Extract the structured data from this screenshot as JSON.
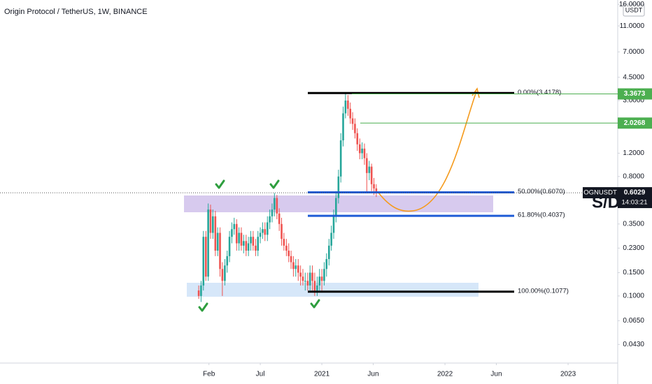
{
  "chart_data": {
    "type": "candlestick",
    "title": "Origin Protocol / TetherUS, 1W, BINANCE",
    "scale": "log",
    "currency": "USDT",
    "annotation": "S/D",
    "countdown": "14:03:21",
    "series": [
      {
        "name": "OGNUSDT",
        "up_color": "#26a69a",
        "down_color": "#ef5350",
        "x": [
          2020.0,
          2020.019,
          2020.038,
          2020.058,
          2020.077,
          2020.096,
          2020.115,
          2020.135,
          2020.154,
          2020.173,
          2020.192,
          2020.212,
          2020.231,
          2020.25,
          2020.269,
          2020.288,
          2020.308,
          2020.327,
          2020.346,
          2020.365,
          2020.385,
          2020.404,
          2020.423,
          2020.442,
          2020.462,
          2020.481,
          2020.5,
          2020.519,
          2020.538,
          2020.558,
          2020.577,
          2020.596,
          2020.615,
          2020.635,
          2020.654,
          2020.673,
          2020.692,
          2020.712,
          2020.731,
          2020.75,
          2020.769,
          2020.788,
          2020.808,
          2020.827,
          2020.846,
          2020.865,
          2020.885,
          2020.904,
          2020.923,
          2020.942,
          2020.962,
          2020.981,
          2021.0,
          2021.019,
          2021.038,
          2021.058,
          2021.077,
          2021.096,
          2021.115,
          2021.135,
          2021.154,
          2021.173,
          2021.192,
          2021.212,
          2021.231,
          2021.25,
          2021.269,
          2021.288,
          2021.308,
          2021.327,
          2021.346,
          2021.365,
          2021.385,
          2021.404,
          2021.423,
          2021.442
        ],
        "open": [
          0.11,
          0.1,
          0.12,
          0.28,
          0.14,
          0.45,
          0.3,
          0.4,
          0.22,
          0.3,
          0.16,
          0.13,
          0.17,
          0.2,
          0.28,
          0.32,
          0.35,
          0.25,
          0.3,
          0.24,
          0.26,
          0.22,
          0.25,
          0.28,
          0.24,
          0.22,
          0.28,
          0.3,
          0.32,
          0.29,
          0.36,
          0.4,
          0.45,
          0.55,
          0.42,
          0.35,
          0.27,
          0.24,
          0.22,
          0.2,
          0.18,
          0.16,
          0.17,
          0.15,
          0.14,
          0.13,
          0.13,
          0.12,
          0.15,
          0.13,
          0.11,
          0.12,
          0.14,
          0.13,
          0.16,
          0.19,
          0.24,
          0.3,
          0.4,
          0.55,
          0.8,
          1.5,
          2.4,
          3.0,
          2.6,
          2.2,
          2.0,
          1.7,
          1.4,
          1.2,
          1.3,
          1.1,
          0.85,
          0.95,
          0.7,
          0.65
        ],
        "high": [
          0.12,
          0.13,
          0.31,
          0.31,
          0.5,
          0.49,
          0.45,
          0.44,
          0.33,
          0.33,
          0.18,
          0.19,
          0.22,
          0.31,
          0.36,
          0.39,
          0.38,
          0.33,
          0.33,
          0.29,
          0.29,
          0.28,
          0.31,
          0.31,
          0.27,
          0.31,
          0.33,
          0.36,
          0.36,
          0.4,
          0.45,
          0.5,
          0.6,
          0.58,
          0.46,
          0.39,
          0.3,
          0.27,
          0.25,
          0.22,
          0.2,
          0.19,
          0.19,
          0.17,
          0.16,
          0.15,
          0.15,
          0.17,
          0.17,
          0.15,
          0.14,
          0.16,
          0.16,
          0.18,
          0.21,
          0.27,
          0.34,
          0.45,
          0.62,
          0.9,
          1.7,
          2.7,
          3.4178,
          3.3,
          2.9,
          2.45,
          2.2,
          1.85,
          1.55,
          1.45,
          1.42,
          1.2,
          1.05,
          1.0,
          0.78,
          0.7
        ],
        "low": [
          0.095,
          0.09,
          0.11,
          0.13,
          0.13,
          0.27,
          0.27,
          0.2,
          0.2,
          0.14,
          0.1,
          0.12,
          0.15,
          0.18,
          0.25,
          0.29,
          0.22,
          0.22,
          0.22,
          0.21,
          0.2,
          0.2,
          0.22,
          0.22,
          0.2,
          0.2,
          0.25,
          0.27,
          0.26,
          0.26,
          0.32,
          0.36,
          0.4,
          0.38,
          0.31,
          0.24,
          0.22,
          0.2,
          0.18,
          0.16,
          0.14,
          0.14,
          0.13,
          0.12,
          0.12,
          0.11,
          0.11,
          0.11,
          0.11,
          0.1,
          0.1,
          0.11,
          0.11,
          0.12,
          0.14,
          0.17,
          0.22,
          0.27,
          0.36,
          0.5,
          0.72,
          1.35,
          2.2,
          2.3,
          2.0,
          1.8,
          1.55,
          1.25,
          1.08,
          1.08,
          0.98,
          0.6,
          0.75,
          0.62,
          0.58,
          0.56
        ],
        "close": [
          0.1,
          0.12,
          0.28,
          0.14,
          0.45,
          0.3,
          0.4,
          0.22,
          0.3,
          0.16,
          0.13,
          0.17,
          0.2,
          0.28,
          0.32,
          0.35,
          0.25,
          0.3,
          0.24,
          0.26,
          0.22,
          0.25,
          0.28,
          0.24,
          0.22,
          0.28,
          0.3,
          0.32,
          0.29,
          0.36,
          0.4,
          0.45,
          0.55,
          0.42,
          0.35,
          0.27,
          0.24,
          0.22,
          0.2,
          0.18,
          0.16,
          0.17,
          0.15,
          0.14,
          0.13,
          0.13,
          0.12,
          0.15,
          0.13,
          0.11,
          0.12,
          0.14,
          0.13,
          0.16,
          0.19,
          0.24,
          0.3,
          0.4,
          0.55,
          0.8,
          1.5,
          2.4,
          3.0,
          2.6,
          2.2,
          2.0,
          1.7,
          1.4,
          1.2,
          1.3,
          1.1,
          0.85,
          0.95,
          0.7,
          0.65,
          0.6029
        ]
      }
    ],
    "ylim": [
      0.0311,
      17.27
    ],
    "yticks": [
      {
        "value": 16,
        "label": "16.0000"
      },
      {
        "value": 11,
        "label": "11.0000"
      },
      {
        "value": 7,
        "label": "7.0000"
      },
      {
        "value": 4.5,
        "label": "4.5000"
      },
      {
        "value": 3,
        "label": "3.0000"
      },
      {
        "value": 1.2,
        "label": "1.2000"
      },
      {
        "value": 0.8,
        "label": "0.8000"
      },
      {
        "value": 0.35,
        "label": "0.3500"
      },
      {
        "value": 0.23,
        "label": "0.2300"
      },
      {
        "value": 0.15,
        "label": "0.1500"
      },
      {
        "value": 0.1,
        "label": "0.1000"
      },
      {
        "value": 0.065,
        "label": "0.0650"
      },
      {
        "value": 0.043,
        "label": "0.0430"
      }
    ],
    "xlim": [
      2018.386,
      2023.403
    ],
    "xticks": [
      {
        "value": 2020.083,
        "label": "Feb"
      },
      {
        "value": 2020.5,
        "label": "Jul"
      },
      {
        "value": 2021,
        "label": "2021"
      },
      {
        "value": 2021.417,
        "label": "Jun"
      },
      {
        "value": 2022,
        "label": "2022"
      },
      {
        "value": 2022.417,
        "label": "Jun"
      },
      {
        "value": 2023,
        "label": "2023"
      }
    ],
    "fib_levels": [
      {
        "label": "0.00%(3.4178)",
        "value": 3.4178,
        "color": "#000000"
      },
      {
        "label": "50.00%(0.6070)",
        "value": 0.607,
        "color": "#1e5bd6"
      },
      {
        "label": "61.80%(0.4037)",
        "value": 0.4037,
        "color": "#1e5bd6"
      },
      {
        "label": "100.00%(0.1077)",
        "value": 0.1077,
        "color": "#000000"
      }
    ],
    "price_lines": [
      {
        "value": 3.3673,
        "color": "#4caf50"
      },
      {
        "value": 2.0268,
        "color": "#4caf50"
      }
    ]
  }
}
